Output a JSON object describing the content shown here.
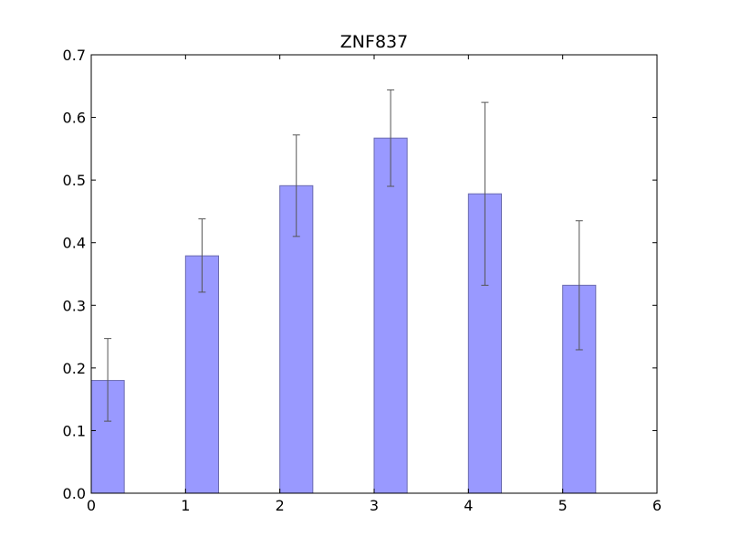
{
  "chart_data": {
    "type": "bar",
    "title": "ZNF837",
    "xlabel": "",
    "ylabel": "",
    "xlim": [
      0,
      6
    ],
    "ylim": [
      0,
      0.7
    ],
    "x_ticks": [
      "0",
      "1",
      "2",
      "3",
      "4",
      "5",
      "6"
    ],
    "y_ticks": [
      "0.0",
      "0.1",
      "0.2",
      "0.3",
      "0.4",
      "0.5",
      "0.6",
      "0.7"
    ],
    "bar_width": 0.35,
    "grid": false,
    "bar_color": "#9999ff",
    "bar_edge_color": "#6b6bb0",
    "error_color": "#555555",
    "bars": [
      {
        "x": 0,
        "value": 0.18,
        "error_low": 0.115,
        "error_high": 0.247
      },
      {
        "x": 1,
        "value": 0.379,
        "error_low": 0.321,
        "error_high": 0.438
      },
      {
        "x": 2,
        "value": 0.491,
        "error_low": 0.41,
        "error_high": 0.572
      },
      {
        "x": 3,
        "value": 0.567,
        "error_low": 0.49,
        "error_high": 0.644
      },
      {
        "x": 4,
        "value": 0.478,
        "error_low": 0.332,
        "error_high": 0.624
      },
      {
        "x": 5,
        "value": 0.332,
        "error_low": 0.229,
        "error_high": 0.435
      }
    ]
  }
}
